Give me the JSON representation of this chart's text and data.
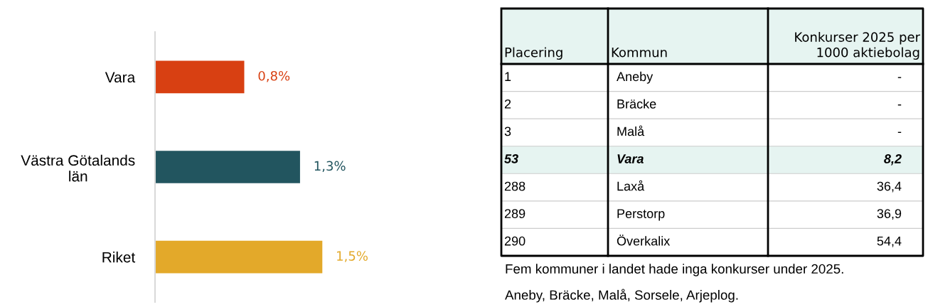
{
  "chart_data": [
    {
      "type": "bar",
      "orientation": "horizontal",
      "categories": [
        "Vara",
        "Västra Götalands\nlän",
        "Riket"
      ],
      "values": [
        0.8,
        1.3,
        1.5
      ],
      "colors": [
        "#d84012",
        "#22555f",
        "#e3a92a"
      ],
      "value_labels": [
        "0,8%",
        "1,3%",
        "1,5%"
      ],
      "grid": false,
      "legend": false
    },
    {
      "type": "other",
      "categories": [
        "Placering",
        "Kommun",
        "Konkurser 2025 per\n1000 aktiebolag"
      ],
      "cell_labels": [
        [
          "1",
          "Aneby",
          "-"
        ],
        [
          "2",
          "Bräcke",
          "-"
        ],
        [
          "3",
          "Malå",
          "-"
        ],
        [
          "53",
          "Vara",
          "8,2"
        ],
        [
          "288",
          "Laxå",
          "36,4"
        ],
        [
          "289",
          "Perstorp",
          "36,9"
        ],
        [
          "290",
          "Överkalix",
          "54,4"
        ]
      ],
      "colors": [
        "#e6f4f1",
        "#ffffff",
        "#ffffff",
        "#ffffff",
        "#e6f4f1",
        "#ffffff",
        "#ffffff",
        "#ffffff"
      ],
      "annotations": [
        "Fem kommuner i landet hade inga konkurser under 2025.",
        "Aneby, Bräcke, Malå, Sorsele, Arjeplog."
      ]
    }
  ]
}
